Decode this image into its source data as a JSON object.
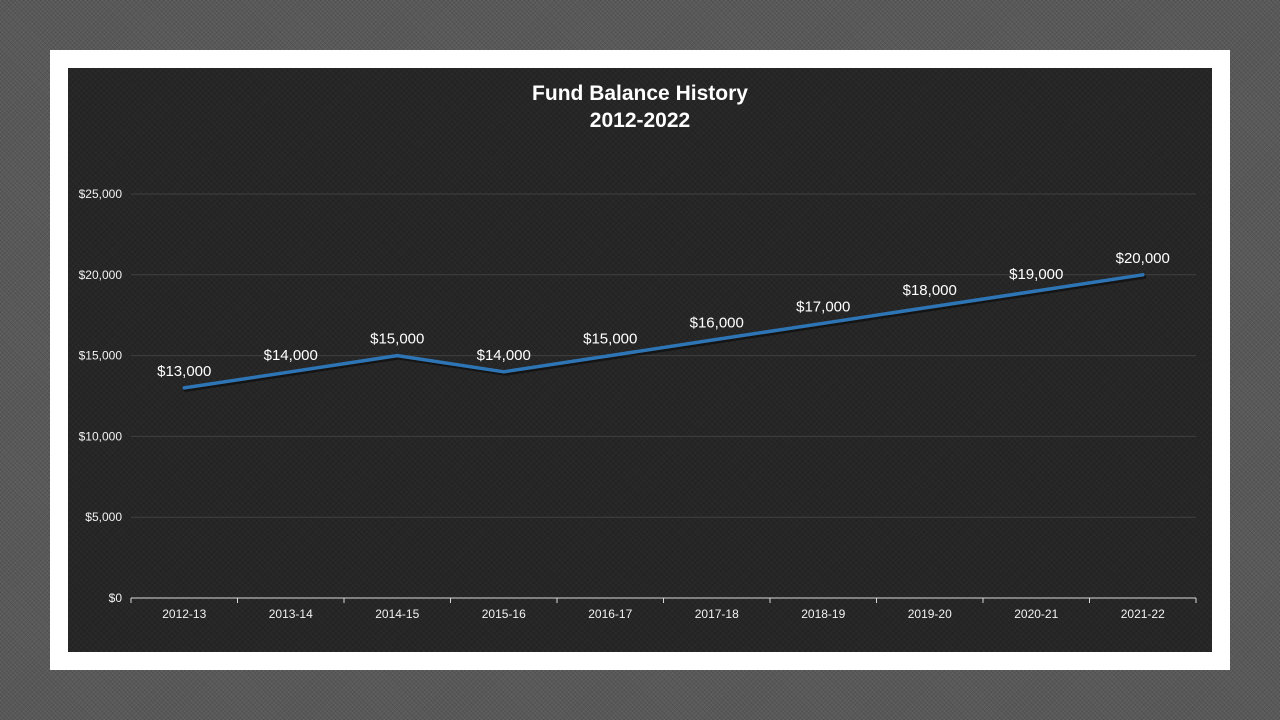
{
  "colors": {
    "page_background": "#595959",
    "frame": "#ffffff",
    "plot_background": "#262626",
    "series_line": "#2e75b6",
    "gridline": "#404040",
    "text": "#ffffff"
  },
  "chart_data": {
    "type": "line",
    "title": "Fund Balance History",
    "subtitle": "2012-2022",
    "xlabel": "",
    "ylabel": "",
    "categories": [
      "2012-13",
      "2013-14",
      "2014-15",
      "2015-16",
      "2016-17",
      "2017-18",
      "2018-19",
      "2019-20",
      "2020-21",
      "2021-22"
    ],
    "series": [
      {
        "values": [
          13000,
          14000,
          15000,
          14000,
          15000,
          16000,
          17000,
          18000,
          19000,
          20000
        ],
        "data_labels": [
          "$13,000",
          "$14,000",
          "$15,000",
          "$14,000",
          "$15,000",
          "$16,000",
          "$17,000",
          "$18,000",
          "$19,000",
          "$20,000"
        ]
      }
    ],
    "ylim": [
      0,
      25000
    ],
    "yticks": [
      0,
      5000,
      10000,
      15000,
      20000,
      25000
    ],
    "ytick_labels": [
      "$0",
      "$5,000",
      "$10,000",
      "$15,000",
      "$20,000",
      "$25,000"
    ],
    "grid": true,
    "legend": "none"
  }
}
